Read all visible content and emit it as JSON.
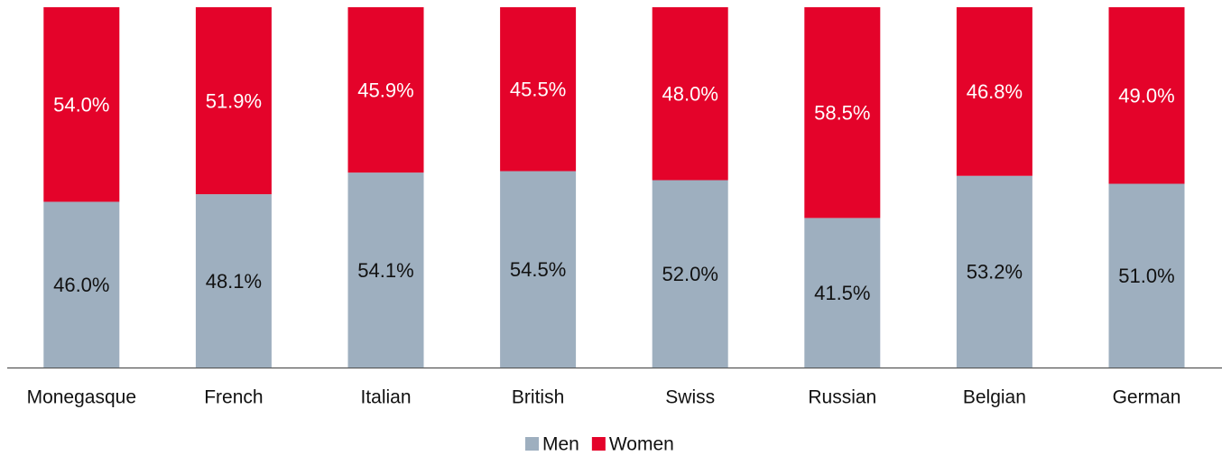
{
  "chart_data": {
    "type": "stacked_bar",
    "categories": [
      "Monegasque",
      "French",
      "Italian",
      "British",
      "Swiss",
      "Russian",
      "Belgian",
      "German"
    ],
    "series": [
      {
        "name": "Men",
        "color": "#9eafbf",
        "values": [
          46.0,
          48.1,
          54.1,
          54.5,
          52.0,
          41.5,
          53.2,
          51.0
        ],
        "value_labels": [
          "46.0%",
          "48.1%",
          "54.1%",
          "54.5%",
          "52.0%",
          "41.5%",
          "53.2%",
          "51.0%"
        ]
      },
      {
        "name": "Women",
        "color": "#e4032a",
        "values": [
          54.0,
          51.9,
          45.9,
          45.5,
          48.0,
          58.5,
          46.8,
          49.0
        ],
        "value_labels": [
          "54.0%",
          "51.9%",
          "45.9%",
          "45.5%",
          "48.0%",
          "58.5%",
          "46.8%",
          "49.0%"
        ]
      }
    ],
    "ylim": [
      0,
      100
    ],
    "legend": "bottom"
  }
}
